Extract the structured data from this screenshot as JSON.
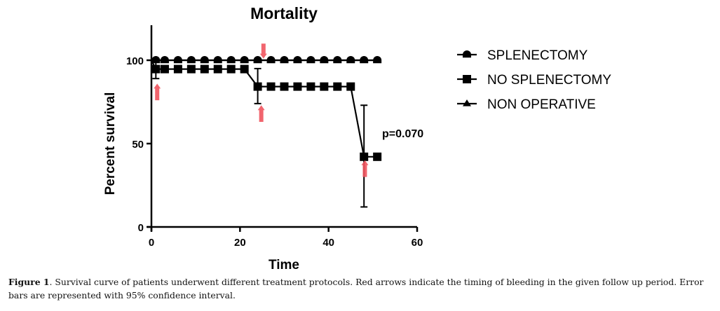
{
  "chart_data": {
    "type": "line",
    "subtype": "kaplan-meier step survival curve",
    "title": "Mortality",
    "xlabel": "Time",
    "ylabel": "Percent survival",
    "xlim": [
      0,
      60
    ],
    "ylim": [
      0,
      100
    ],
    "xticks": [
      0,
      20,
      40,
      60
    ],
    "yticks": [
      0,
      50,
      100
    ],
    "grid": false,
    "legend_position": "right",
    "annotation": "p=0.070",
    "series": [
      {
        "name": "SPLENECTOMY",
        "marker": "circle",
        "steps": [
          {
            "t": 0,
            "s": 100
          },
          {
            "t": 51,
            "s": 100
          }
        ],
        "markers": [
          {
            "t": 1,
            "s": 100
          },
          {
            "t": 3,
            "s": 100
          },
          {
            "t": 6,
            "s": 100
          },
          {
            "t": 9,
            "s": 100
          },
          {
            "t": 12,
            "s": 100
          },
          {
            "t": 15,
            "s": 100
          },
          {
            "t": 18,
            "s": 100
          },
          {
            "t": 21,
            "s": 100
          },
          {
            "t": 24,
            "s": 100
          },
          {
            "t": 27,
            "s": 100
          },
          {
            "t": 30,
            "s": 100
          },
          {
            "t": 33,
            "s": 100
          },
          {
            "t": 36,
            "s": 100
          },
          {
            "t": 39,
            "s": 100
          },
          {
            "t": 42,
            "s": 100
          },
          {
            "t": 45,
            "s": 100
          },
          {
            "t": 48,
            "s": 100
          },
          {
            "t": 51,
            "s": 100
          }
        ]
      },
      {
        "name": "NO SPLENECTOMY",
        "marker": "square",
        "steps": [
          {
            "t": 0,
            "s": 100
          },
          {
            "t": 1,
            "s": 94.7
          },
          {
            "t": 21,
            "s": 94.7
          },
          {
            "t": 24,
            "s": 84.2
          },
          {
            "t": 45,
            "s": 84.2
          },
          {
            "t": 48,
            "s": 42.1
          },
          {
            "t": 51,
            "s": 42.1
          }
        ],
        "markers": [
          {
            "t": 1,
            "s": 94.7
          },
          {
            "t": 3,
            "s": 94.7
          },
          {
            "t": 6,
            "s": 94.7
          },
          {
            "t": 9,
            "s": 94.7
          },
          {
            "t": 12,
            "s": 94.7
          },
          {
            "t": 15,
            "s": 94.7
          },
          {
            "t": 18,
            "s": 94.7
          },
          {
            "t": 21,
            "s": 94.7
          },
          {
            "t": 24,
            "s": 84.2
          },
          {
            "t": 27,
            "s": 84.2
          },
          {
            "t": 30,
            "s": 84.2
          },
          {
            "t": 33,
            "s": 84.2
          },
          {
            "t": 36,
            "s": 84.2
          },
          {
            "t": 39,
            "s": 84.2
          },
          {
            "t": 42,
            "s": 84.2
          },
          {
            "t": 45,
            "s": 84.2
          },
          {
            "t": 48,
            "s": 42.1
          },
          {
            "t": 51,
            "s": 42.1
          }
        ],
        "error_bars_95ci": [
          {
            "t": 1,
            "low": 89,
            "high": 100
          },
          {
            "t": 24,
            "low": 74,
            "high": 95
          },
          {
            "t": 48,
            "low": 12,
            "high": 73
          }
        ]
      },
      {
        "name": "NON OPERATIVE",
        "marker": "triangle",
        "steps": [
          {
            "t": 0,
            "s": 100
          },
          {
            "t": 51,
            "s": 100
          }
        ],
        "markers": [
          {
            "t": 1,
            "s": 100
          },
          {
            "t": 24,
            "s": 100
          },
          {
            "t": 51,
            "s": 100
          }
        ]
      }
    ],
    "bleeding_arrows": [
      {
        "t": 1.3,
        "s_tail": 76,
        "s_head": 86,
        "direction": "up"
      },
      {
        "t": 25.3,
        "s_tail": 110,
        "s_head": 101,
        "direction": "down"
      },
      {
        "t": 24.8,
        "s_tail": 63,
        "s_head": 73,
        "direction": "up"
      },
      {
        "t": 48.2,
        "s_tail": 30,
        "s_head": 40,
        "direction": "up"
      }
    ],
    "colors": {
      "series": "#000000",
      "arrow": "#f0545e"
    }
  },
  "caption": {
    "label": "Figure 1",
    "text": ". Survival curve of patients underwent different treatment protocols. Red arrows indicate the timing of bleeding in the given follow up period. Error bars are represented with 95% confidence interval."
  }
}
